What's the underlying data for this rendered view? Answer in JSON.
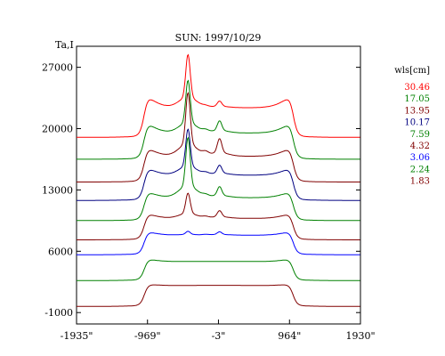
{
  "chart_data": {
    "type": "line",
    "title": "SUN: 1997/10/29",
    "ylabel": "Ta,I",
    "xlabel": "",
    "yticks": [
      "27000",
      "20000",
      "13000",
      "6000",
      "-1000"
    ],
    "ytick_values": [
      27000,
      20000,
      13000,
      6000,
      -1000
    ],
    "xticks": [
      "-1935\"",
      "-969\"",
      "-3\"",
      "964\"",
      "1930\""
    ],
    "xtick_values": [
      -1935,
      -969,
      -3,
      964,
      1930
    ],
    "xlim": [
      -1935,
      1930
    ],
    "ylim": [
      -2300,
      29400
    ],
    "legend": {
      "title": "wls[cm]",
      "position": "right"
    },
    "series": [
      {
        "name": "30.46",
        "color": "#ff0000",
        "offset": 19000,
        "limb": 3100,
        "peak1": 4850,
        "peak2": 600,
        "brightening": 2000
      },
      {
        "name": "17.05",
        "color": "#008000",
        "offset": 16500,
        "limb": 2750,
        "peak1": 4800,
        "peak2": 1100,
        "brightening": 1700
      },
      {
        "name": "13.95",
        "color": "#800000",
        "offset": 13900,
        "limb": 2700,
        "peak1": 5800,
        "peak2": 1600,
        "brightening": 1500
      },
      {
        "name": "10.17",
        "color": "#000080",
        "offset": 11800,
        "limb": 2650,
        "peak1": 4200,
        "peak2": 900,
        "brightening": 1300
      },
      {
        "name": "7.59",
        "color": "#008000",
        "offset": 9500,
        "limb": 2400,
        "peak1": 5500,
        "peak2": 1000,
        "brightening": 1100
      },
      {
        "name": "4.32",
        "color": "#800000",
        "offset": 7300,
        "limb": 2250,
        "peak1": 2300,
        "peak2": 700,
        "brightening": 900
      },
      {
        "name": "3.06",
        "color": "#0000ff",
        "offset": 5600,
        "limb": 2050,
        "peak1": 350,
        "peak2": 300,
        "brightening": 700
      },
      {
        "name": "2.24",
        "color": "#008000",
        "offset": 2650,
        "limb": 2000,
        "peak1": 0,
        "peak2": 0,
        "brightening": 500
      },
      {
        "name": "1.83",
        "color": "#800000",
        "offset": -300,
        "limb": 2200,
        "peak1": 0,
        "peak2": 0,
        "brightening": 300
      }
    ]
  }
}
